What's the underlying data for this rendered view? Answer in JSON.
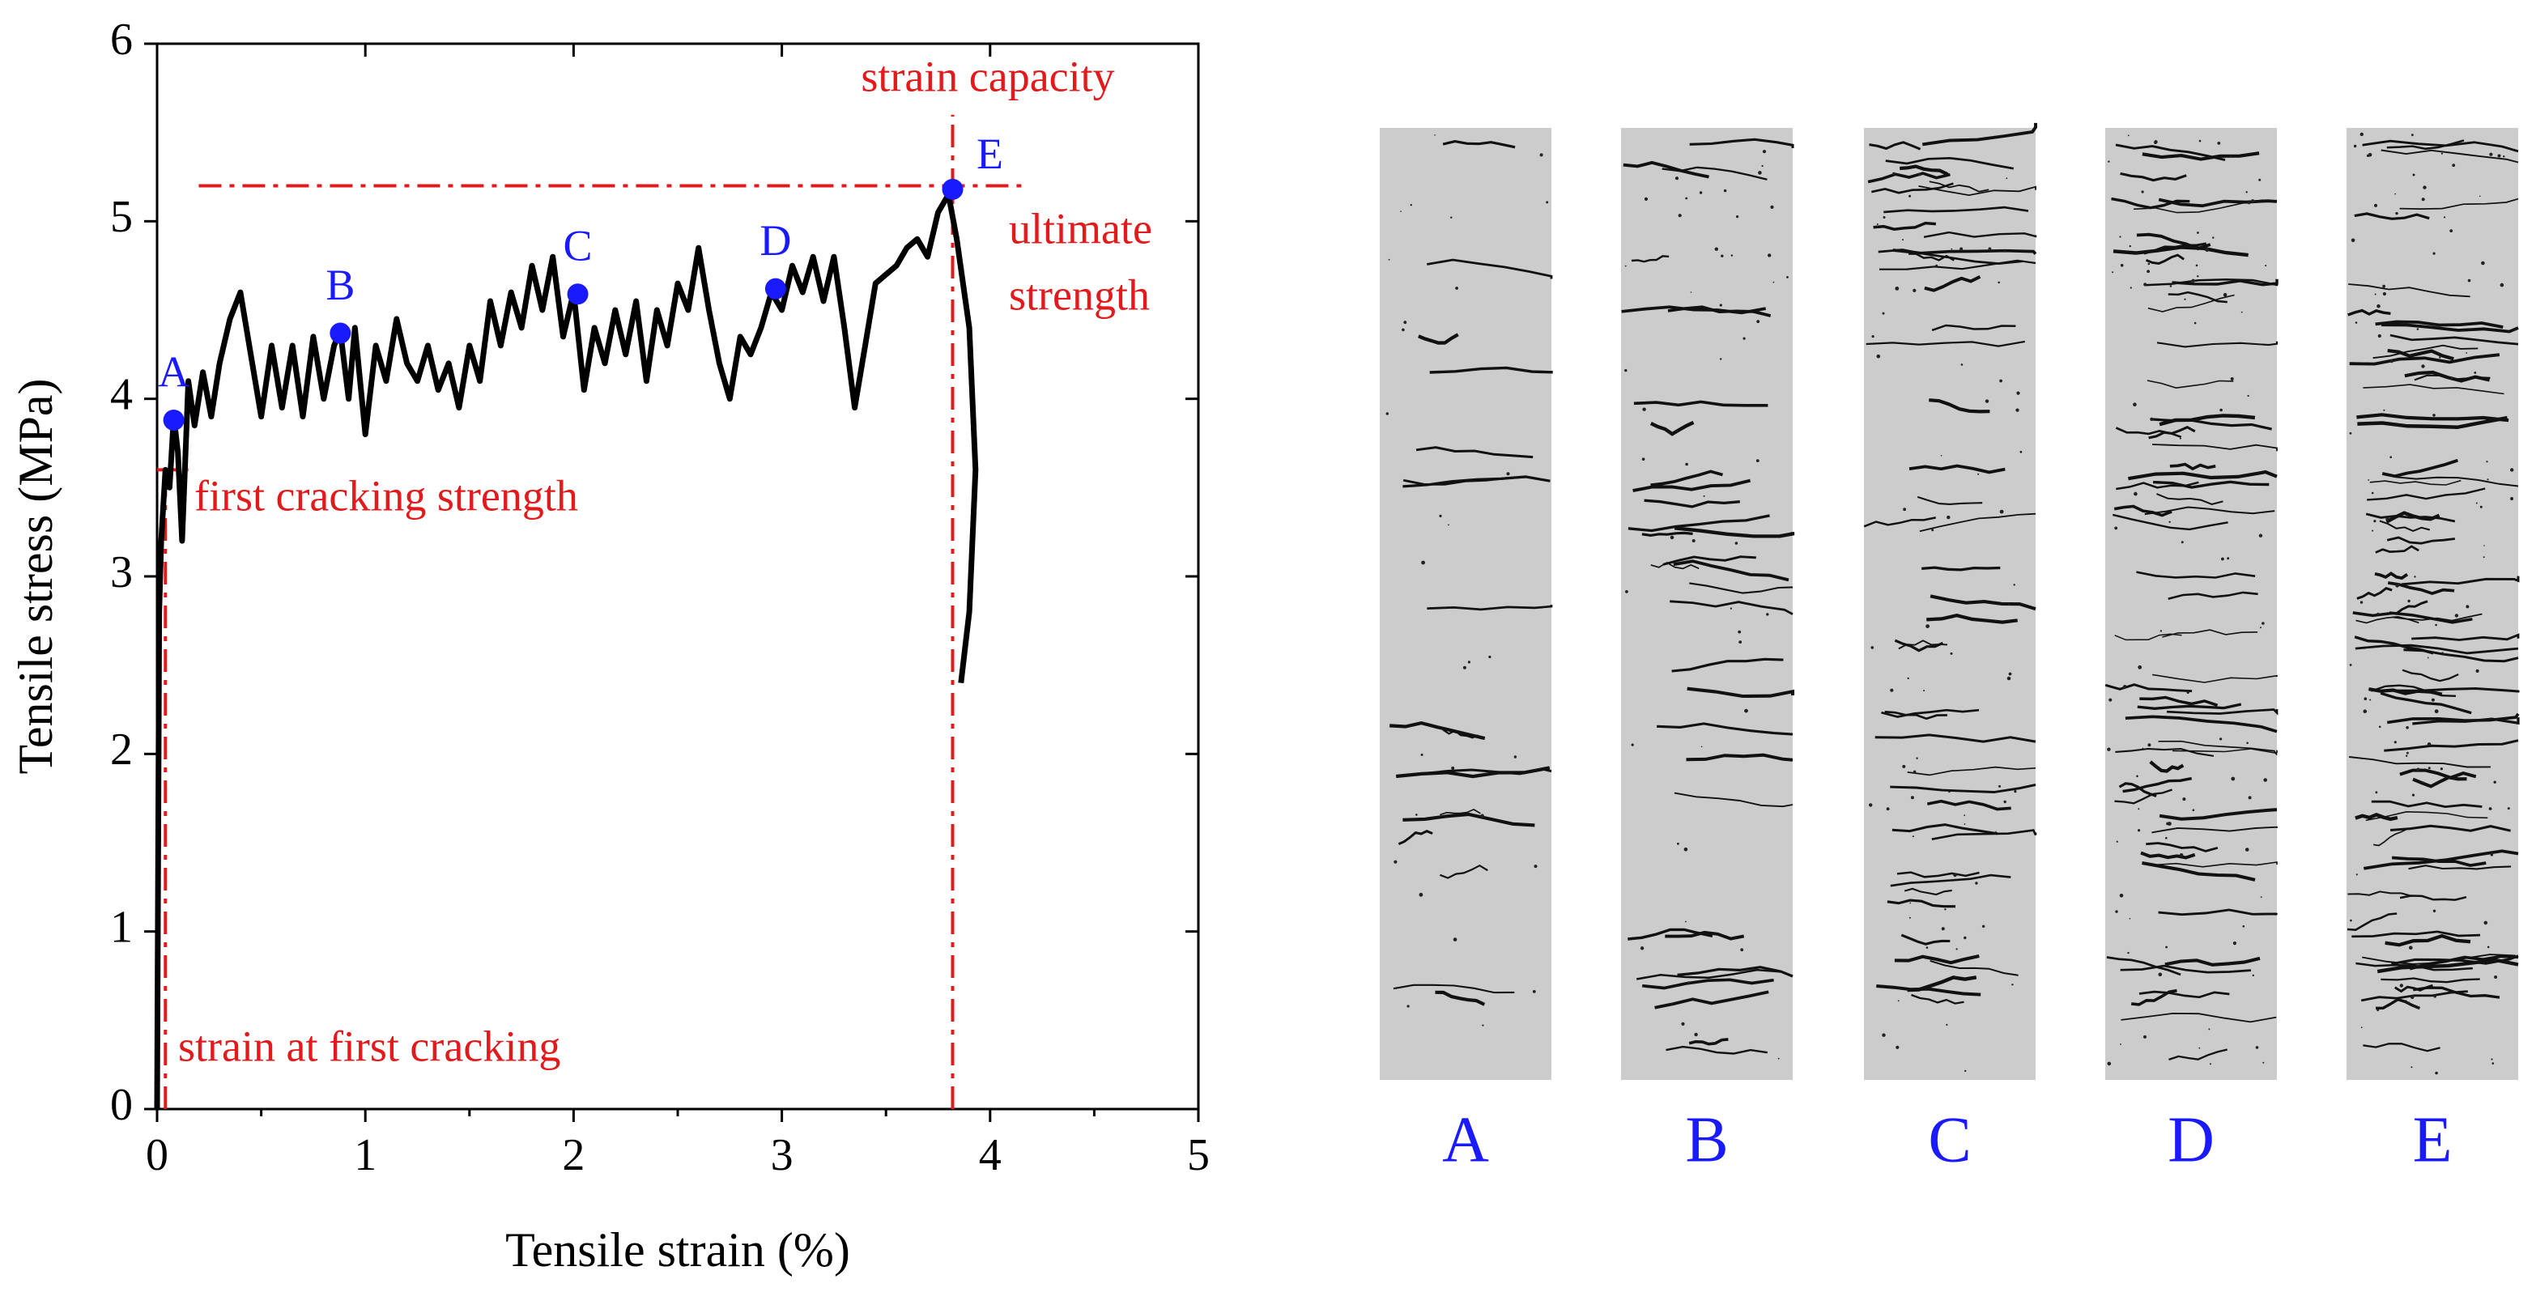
{
  "chart_data": {
    "type": "line",
    "xlabel": "Tensile strain (%)",
    "ylabel": "Tensile stress (MPa)",
    "xlim": [
      0,
      5
    ],
    "ylim": [
      0,
      6
    ],
    "xticks": [
      0,
      1,
      2,
      3,
      4,
      5
    ],
    "minor_xticks": [
      0.5,
      1.5,
      2.5,
      3.5,
      4.5
    ],
    "yticks": [
      0,
      1,
      2,
      3,
      4,
      5,
      6
    ],
    "series": [
      {
        "color": "#000000",
        "x": [
          0,
          0.01,
          0.02,
          0.04,
          0.06,
          0.08,
          0.1,
          0.12,
          0.15,
          0.18,
          0.22,
          0.26,
          0.3,
          0.35,
          0.4,
          0.45,
          0.5,
          0.55,
          0.6,
          0.65,
          0.7,
          0.75,
          0.8,
          0.85,
          0.88,
          0.92,
          0.95,
          1.0,
          1.05,
          1.1,
          1.15,
          1.2,
          1.25,
          1.3,
          1.35,
          1.4,
          1.45,
          1.5,
          1.55,
          1.6,
          1.65,
          1.7,
          1.75,
          1.8,
          1.85,
          1.9,
          1.95,
          2.0,
          2.05,
          2.1,
          2.15,
          2.2,
          2.25,
          2.3,
          2.35,
          2.4,
          2.45,
          2.5,
          2.55,
          2.6,
          2.65,
          2.7,
          2.75,
          2.8,
          2.85,
          2.9,
          2.95,
          3.0,
          3.05,
          3.1,
          3.15,
          3.2,
          3.25,
          3.3,
          3.35,
          3.4,
          3.45,
          3.5,
          3.55,
          3.6,
          3.65,
          3.7,
          3.75,
          3.8,
          3.84,
          3.9,
          3.93,
          3.9,
          3.86
        ],
        "values": [
          0,
          2.8,
          3.2,
          3.6,
          3.5,
          3.9,
          3.7,
          3.2,
          4.1,
          3.85,
          4.15,
          3.9,
          4.2,
          4.45,
          4.6,
          4.25,
          3.9,
          4.3,
          3.95,
          4.3,
          3.9,
          4.35,
          4.0,
          4.3,
          4.38,
          4.0,
          4.4,
          3.8,
          4.3,
          4.1,
          4.45,
          4.2,
          4.1,
          4.3,
          4.05,
          4.2,
          3.95,
          4.3,
          4.1,
          4.55,
          4.3,
          4.6,
          4.4,
          4.75,
          4.5,
          4.8,
          4.35,
          4.6,
          4.05,
          4.4,
          4.2,
          4.5,
          4.25,
          4.55,
          4.1,
          4.5,
          4.3,
          4.65,
          4.5,
          4.85,
          4.5,
          4.2,
          4.0,
          4.35,
          4.25,
          4.4,
          4.6,
          4.5,
          4.75,
          4.6,
          4.8,
          4.55,
          4.8,
          4.4,
          3.95,
          4.3,
          4.65,
          4.7,
          4.75,
          4.85,
          4.9,
          4.8,
          5.05,
          5.15,
          4.9,
          4.4,
          3.6,
          2.8,
          2.4
        ]
      }
    ],
    "points": {
      "color": "#1a1aff",
      "labels": [
        "A",
        "B",
        "C",
        "D",
        "E"
      ],
      "x": [
        0.08,
        0.88,
        2.02,
        2.97,
        3.82
      ],
      "values": [
        3.88,
        4.37,
        4.59,
        4.62,
        5.18
      ]
    },
    "ref_lines": {
      "color": "#e31a1c",
      "ultimate_y": 5.2,
      "ultimate_x": [
        0.2,
        4.15
      ],
      "capacity_x": 3.82,
      "capacity_y": [
        0,
        5.6
      ],
      "first_crack_y": 3.6,
      "first_crack_xspan": [
        0,
        0.15
      ],
      "first_strain_x": 0.04,
      "first_strain_y": [
        0,
        3.6
      ]
    },
    "annotations": {
      "strain_capacity": "strain capacity",
      "ultimate_strength": [
        "ultimate",
        "strength"
      ],
      "first_cracking_strength": "first cracking strength",
      "strain_at_first_cracking": "strain at first cracking"
    },
    "panels": [
      "A",
      "B",
      "C",
      "D",
      "E"
    ]
  }
}
